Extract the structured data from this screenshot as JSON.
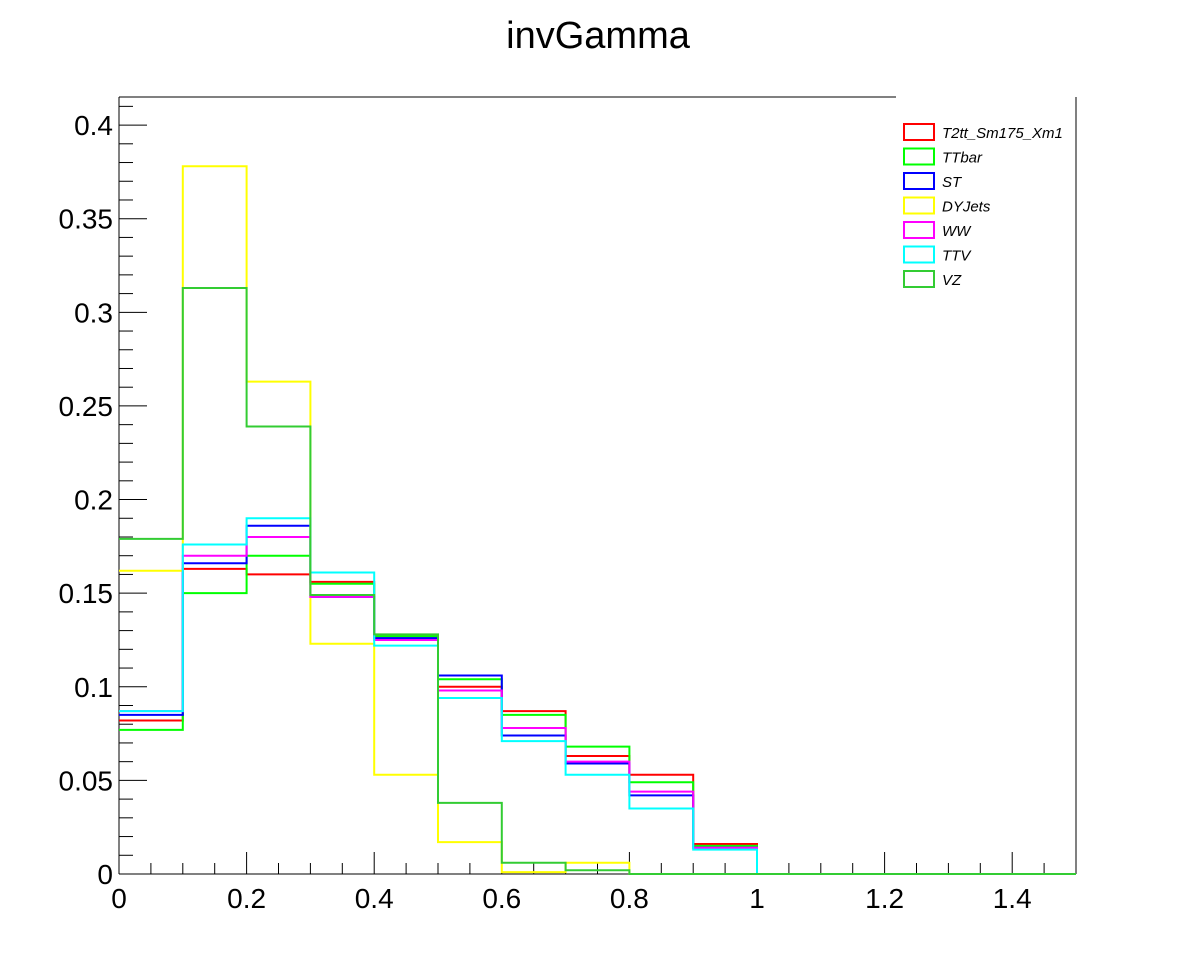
{
  "chart_data": {
    "type": "histogram",
    "title": "invGamma",
    "xlabel": "",
    "ylabel": "",
    "xlim": [
      0,
      1.5
    ],
    "ylim": [
      0,
      0.415
    ],
    "x_ticks": [
      "0",
      "0.2",
      "0.4",
      "0.6",
      "0.8",
      "1",
      "1.2",
      "1.4"
    ],
    "y_ticks": [
      "0",
      "0.05",
      "0.1",
      "0.15",
      "0.2",
      "0.25",
      "0.3",
      "0.35",
      "0.4"
    ],
    "bin_edges": [
      0,
      0.1,
      0.2,
      0.3,
      0.4,
      0.5,
      0.6,
      0.7,
      0.8,
      0.9,
      1.0,
      1.1,
      1.2,
      1.3,
      1.4,
      1.5
    ],
    "grid": false,
    "legend_position": "top-right",
    "series": [
      {
        "name": "T2tt_Sm175_Xm1",
        "color": "#ff0000",
        "values": [
          0.082,
          0.163,
          0.16,
          0.156,
          0.127,
          0.1,
          0.087,
          0.063,
          0.053,
          0.016,
          0,
          0,
          0,
          0,
          0
        ]
      },
      {
        "name": "TTbar",
        "color": "#00ff00",
        "values": [
          0.077,
          0.15,
          0.17,
          0.155,
          0.127,
          0.104,
          0.085,
          0.068,
          0.049,
          0.015,
          0,
          0,
          0,
          0,
          0
        ]
      },
      {
        "name": "ST",
        "color": "#0000ff",
        "values": [
          0.085,
          0.166,
          0.186,
          0.148,
          0.126,
          0.106,
          0.074,
          0.059,
          0.042,
          0.014,
          0,
          0,
          0,
          0,
          0
        ]
      },
      {
        "name": "DYJets",
        "color": "#ffff00",
        "values": [
          0.162,
          0.378,
          0.263,
          0.123,
          0.053,
          0.017,
          0.001,
          0.006,
          0,
          0,
          0,
          0,
          0,
          0,
          0
        ]
      },
      {
        "name": "WW",
        "color": "#ff00ff",
        "values": [
          0.087,
          0.17,
          0.18,
          0.148,
          0.125,
          0.098,
          0.078,
          0.06,
          0.044,
          0.014,
          0,
          0,
          0,
          0,
          0
        ]
      },
      {
        "name": "TTV",
        "color": "#00ffff",
        "values": [
          0.087,
          0.176,
          0.19,
          0.161,
          0.122,
          0.094,
          0.071,
          0.053,
          0.035,
          0.013,
          0,
          0,
          0,
          0,
          0
        ]
      },
      {
        "name": "VZ",
        "color": "#33cc33",
        "values": [
          0.179,
          0.313,
          0.239,
          0.149,
          0.128,
          0.038,
          0.006,
          0.002,
          0,
          0,
          0,
          0,
          0,
          0,
          0
        ]
      }
    ]
  }
}
